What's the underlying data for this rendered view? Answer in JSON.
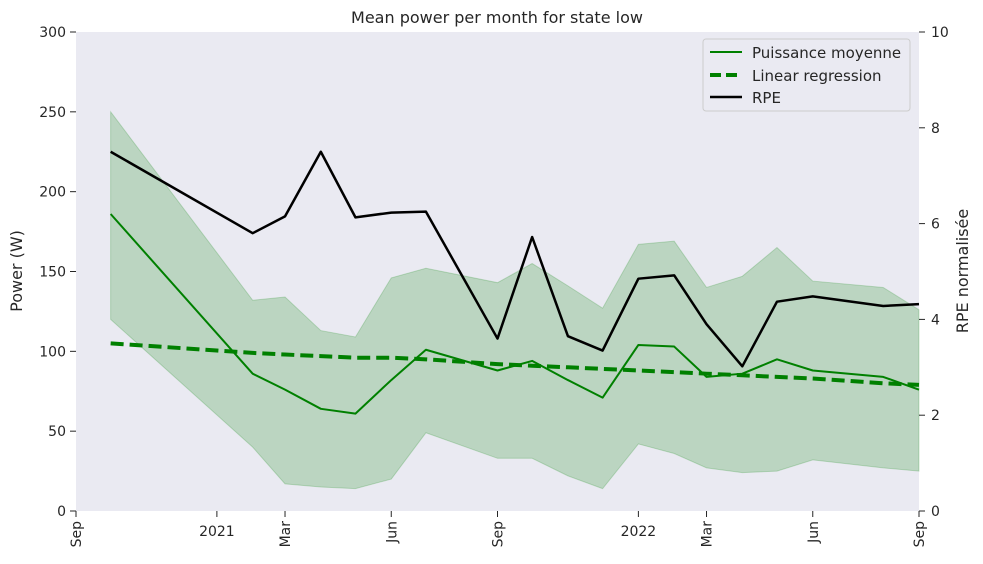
{
  "chart_data": {
    "type": "line",
    "title": "Mean power per month for state low",
    "ylabel": "Power (W)",
    "y2label": "RPE normalisée",
    "ylim": [
      0,
      300
    ],
    "y2lim": [
      0,
      10
    ],
    "xlim": [
      "2020-09-01",
      "2022-09-01"
    ],
    "yticks": [
      0,
      50,
      100,
      150,
      200,
      250,
      300
    ],
    "y2ticks": [
      0,
      2,
      4,
      6,
      8,
      10
    ],
    "xticks": [
      {
        "date": "2020-09-01",
        "label": "Sep",
        "rotated": true
      },
      {
        "date": "2021-01-01",
        "label": "2021",
        "rotated": false
      },
      {
        "date": "2021-03-01",
        "label": "Mar",
        "rotated": true
      },
      {
        "date": "2021-06-01",
        "label": "Jun",
        "rotated": true
      },
      {
        "date": "2021-09-01",
        "label": "Sep",
        "rotated": true
      },
      {
        "date": "2022-01-01",
        "label": "2022",
        "rotated": false
      },
      {
        "date": "2022-03-01",
        "label": "Mar",
        "rotated": true
      },
      {
        "date": "2022-06-01",
        "label": "Jun",
        "rotated": true
      },
      {
        "date": "2022-09-01",
        "label": "Sep",
        "rotated": true
      }
    ],
    "grid": false,
    "legend_position": "top-right",
    "colors": {
      "power": "#008000",
      "band": "#008000",
      "rpe": "#000000",
      "background": "#eaeaf2"
    },
    "x": [
      "2020-10-01",
      "2021-02-01",
      "2021-03-01",
      "2021-04-01",
      "2021-05-01",
      "2021-06-01",
      "2021-07-01",
      "2021-09-01",
      "2021-10-01",
      "2021-11-01",
      "2021-12-01",
      "2022-01-01",
      "2022-02-01",
      "2022-03-01",
      "2022-04-01",
      "2022-05-01",
      "2022-06-01",
      "2022-08-01",
      "2022-09-01"
    ],
    "series": [
      {
        "name": "Puissance moyenne",
        "axis": "left",
        "style": "solid",
        "values": [
          186,
          86,
          76,
          64,
          61,
          82,
          101,
          88,
          94,
          82,
          71,
          104,
          103,
          84,
          86,
          95,
          88,
          84,
          76
        ]
      },
      {
        "name": "Linear regression",
        "axis": "left",
        "style": "dashed",
        "values": [
          105,
          99,
          98,
          97,
          96,
          96,
          95,
          92,
          91,
          90,
          89,
          88,
          87,
          86,
          85,
          84,
          83,
          80,
          79
        ]
      },
      {
        "name": "RPE",
        "axis": "right",
        "style": "solid",
        "values": [
          7.5,
          5.8,
          6.15,
          7.5,
          6.13,
          6.23,
          6.25,
          3.6,
          5.72,
          3.65,
          3.35,
          4.85,
          4.92,
          3.9,
          3.02,
          4.37,
          4.48,
          4.28,
          4.32
        ]
      }
    ],
    "band": {
      "name": "Puissance moyenne range",
      "axis": "left",
      "upper": [
        250,
        132,
        134,
        113,
        109,
        146,
        152,
        143,
        155,
        141,
        127,
        167,
        169,
        140,
        147,
        165,
        144,
        140,
        126
      ],
      "lower": [
        120,
        40,
        17,
        15,
        14,
        20,
        49,
        33,
        33,
        22,
        14,
        42,
        36,
        27,
        24,
        25,
        32,
        27,
        25
      ]
    }
  }
}
